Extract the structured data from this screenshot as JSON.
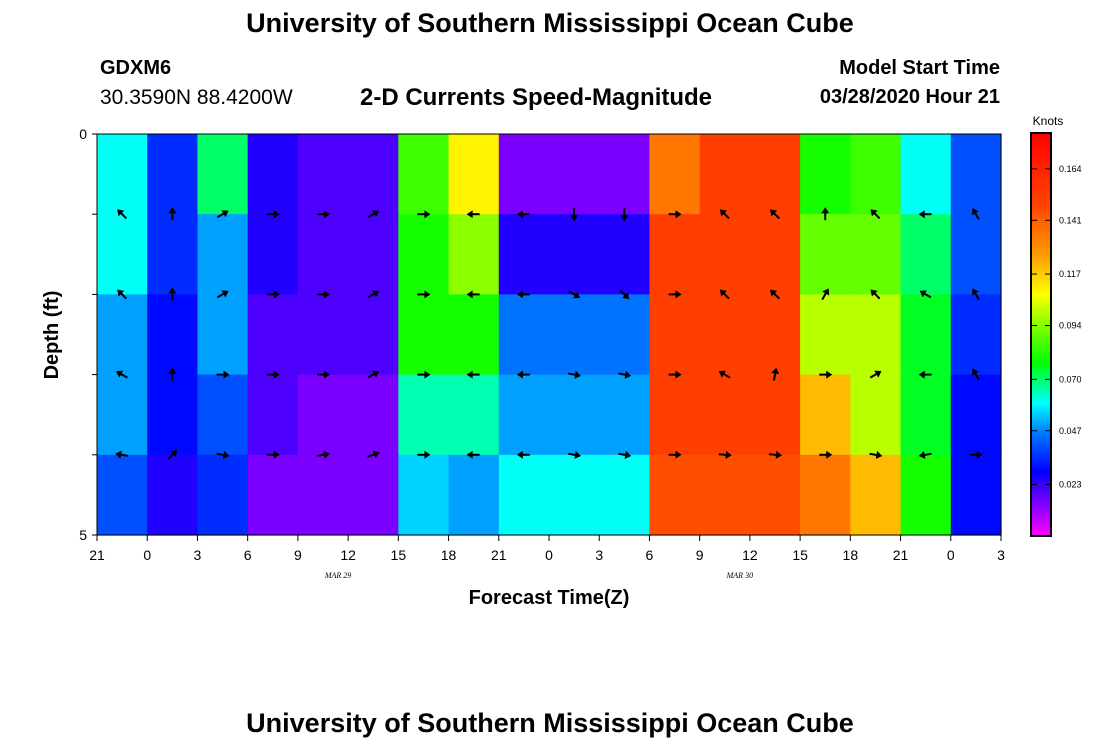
{
  "header": {
    "title": "University of Southern Mississippi Ocean Cube",
    "footer_title": "University of Southern Mississippi Ocean Cube",
    "station": "GDXM6",
    "coordinates": "30.3590N 88.4200W",
    "plot_title": "2-D Currents Speed-Magnitude",
    "model_start_label": "Model Start Time",
    "model_start_value": "03/28/2020 Hour 21"
  },
  "colors": {
    "scale_bottom": "#ff00ff",
    "scale_top": "#ff0000",
    "background": "#ffffff"
  },
  "chart_data": {
    "type": "heatmap",
    "title": "2-D Currents Speed-Magnitude",
    "xlabel": "Forecast Time(Z)",
    "ylabel": "Depth (ft)",
    "x_tick_labels": [
      "21",
      "0",
      "3",
      "6",
      "9",
      "12",
      "15",
      "18",
      "21",
      "0",
      "3",
      "6",
      "9",
      "12",
      "15",
      "18",
      "21",
      "0",
      "3"
    ],
    "date_labels": [
      {
        "label": "MAR 29",
        "at_tick": 4.8
      },
      {
        "label": "MAR 30",
        "at_tick": 12.8
      }
    ],
    "y_tick_labels": [
      "0",
      "5"
    ],
    "y_minor_ticks": 4,
    "xlim_hours": [
      0,
      54
    ],
    "ylim_ft": [
      0,
      5
    ],
    "colorbar": {
      "unit": "Knots",
      "ticks": [
        "0.164",
        "0.141",
        "0.117",
        "0.094",
        "0.070",
        "0.047",
        "0.023"
      ],
      "range": [
        0,
        0.18
      ]
    },
    "speed_knots": {
      "rows": 5,
      "columns": 18,
      "values": [
        [
          0.06,
          0.035,
          0.07,
          0.025,
          0.02,
          0.02,
          0.085,
          0.11,
          0.015,
          0.015,
          0.015,
          0.135,
          0.15,
          0.15,
          0.08,
          0.085,
          0.06,
          0.04
        ],
        [
          0.06,
          0.035,
          0.05,
          0.025,
          0.02,
          0.02,
          0.08,
          0.095,
          0.025,
          0.025,
          0.025,
          0.15,
          0.15,
          0.15,
          0.09,
          0.09,
          0.07,
          0.04
        ],
        [
          0.05,
          0.03,
          0.05,
          0.02,
          0.02,
          0.02,
          0.08,
          0.08,
          0.045,
          0.045,
          0.045,
          0.15,
          0.15,
          0.15,
          0.1,
          0.1,
          0.075,
          0.035
        ],
        [
          0.05,
          0.03,
          0.04,
          0.02,
          0.015,
          0.015,
          0.065,
          0.065,
          0.05,
          0.05,
          0.05,
          0.15,
          0.15,
          0.15,
          0.12,
          0.1,
          0.075,
          0.03
        ],
        [
          0.04,
          0.025,
          0.035,
          0.015,
          0.015,
          0.015,
          0.055,
          0.05,
          0.06,
          0.06,
          0.06,
          0.145,
          0.145,
          0.145,
          0.135,
          0.12,
          0.08,
          0.03
        ]
      ]
    },
    "direction_deg": {
      "rows": 4,
      "columns": 18,
      "values": [
        [
          315,
          0,
          60,
          90,
          90,
          60,
          90,
          270,
          270,
          180,
          180,
          90,
          315,
          315,
          0,
          315,
          270,
          330
        ],
        [
          315,
          0,
          60,
          90,
          90,
          60,
          90,
          270,
          270,
          120,
          135,
          90,
          315,
          315,
          30,
          315,
          300,
          330
        ],
        [
          300,
          0,
          90,
          90,
          90,
          60,
          90,
          270,
          270,
          100,
          100,
          90,
          300,
          10,
          90,
          60,
          270,
          330
        ],
        [
          280,
          45,
          100,
          90,
          80,
          70,
          90,
          270,
          270,
          100,
          100,
          90,
          95,
          95,
          90,
          100,
          260,
          90
        ]
      ]
    }
  }
}
